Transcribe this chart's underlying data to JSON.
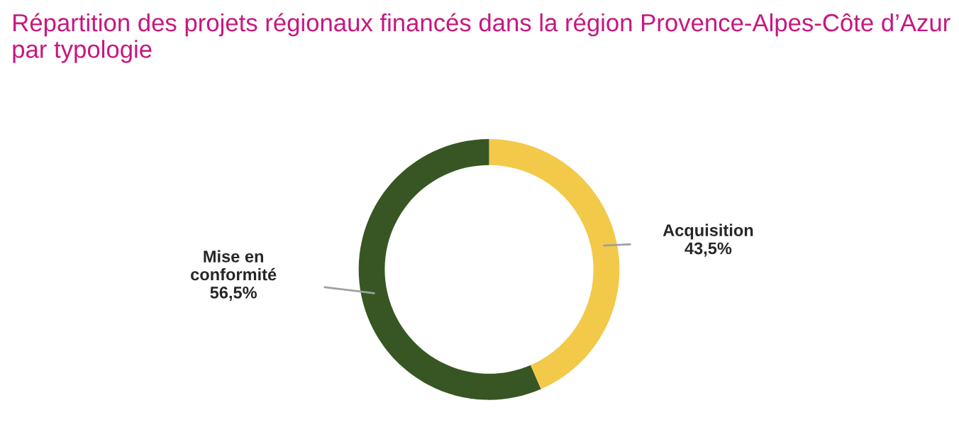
{
  "chart_data": {
    "type": "donut",
    "title": "Répartition des projets régionaux financés dans la région Provence-Alpes-Côte d’Azur par typologie",
    "categories": [
      "Acquisition",
      "Mise en\nconformité"
    ],
    "values": [
      43.5,
      56.5
    ],
    "value_labels": [
      "43,5%",
      "56,5%"
    ],
    "colors": [
      "#f3c94a",
      "#375623"
    ],
    "legend": false
  }
}
